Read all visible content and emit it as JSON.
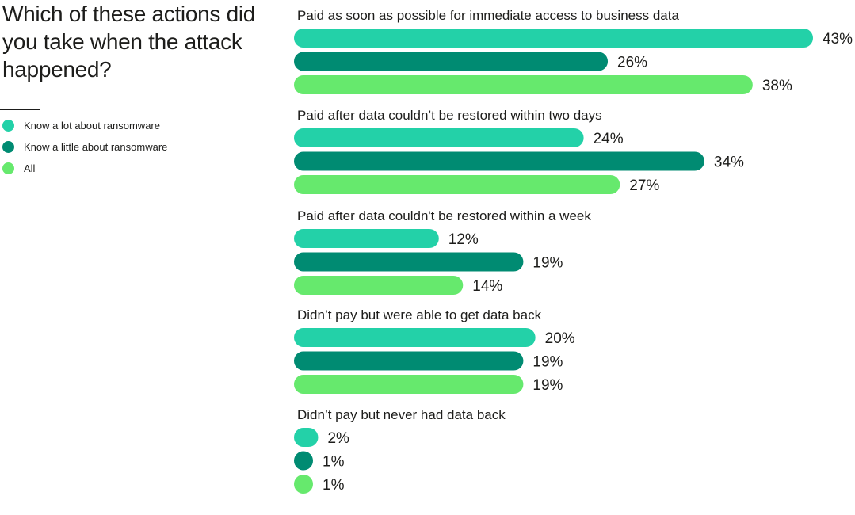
{
  "header": {
    "title": "Which of these actions did you take when the attack happened?"
  },
  "legend": {
    "items": [
      {
        "label": "Know a lot about ransomware",
        "color": "#23d1a8"
      },
      {
        "label": "Know a little about ransomware",
        "color": "#008b72"
      },
      {
        "label": "All",
        "color": "#66e96d"
      }
    ]
  },
  "chart_data": {
    "type": "bar",
    "orientation": "horizontal",
    "title": "Which of these actions did you take when the attack happened?",
    "value_suffix": "%",
    "xlim": [
      0,
      43
    ],
    "grid": false,
    "legend_position": "top-left",
    "categories": [
      "Paid as soon as possible for immediate access to business data",
      "Paid after data couldn’t be restored within two days",
      "Paid after data couldn't be restored within a week",
      "Didn’t pay but were able to get data back",
      "Didn’t pay but never had data back"
    ],
    "series": [
      {
        "name": "Know a lot about ransomware",
        "color": "#23d1a8",
        "values": [
          43,
          24,
          12,
          20,
          2
        ]
      },
      {
        "name": "Know a little about ransomware",
        "color": "#008b72",
        "values": [
          26,
          34,
          19,
          19,
          1
        ]
      },
      {
        "name": "All",
        "color": "#66e96d",
        "values": [
          38,
          27,
          14,
          19,
          1
        ]
      }
    ]
  }
}
